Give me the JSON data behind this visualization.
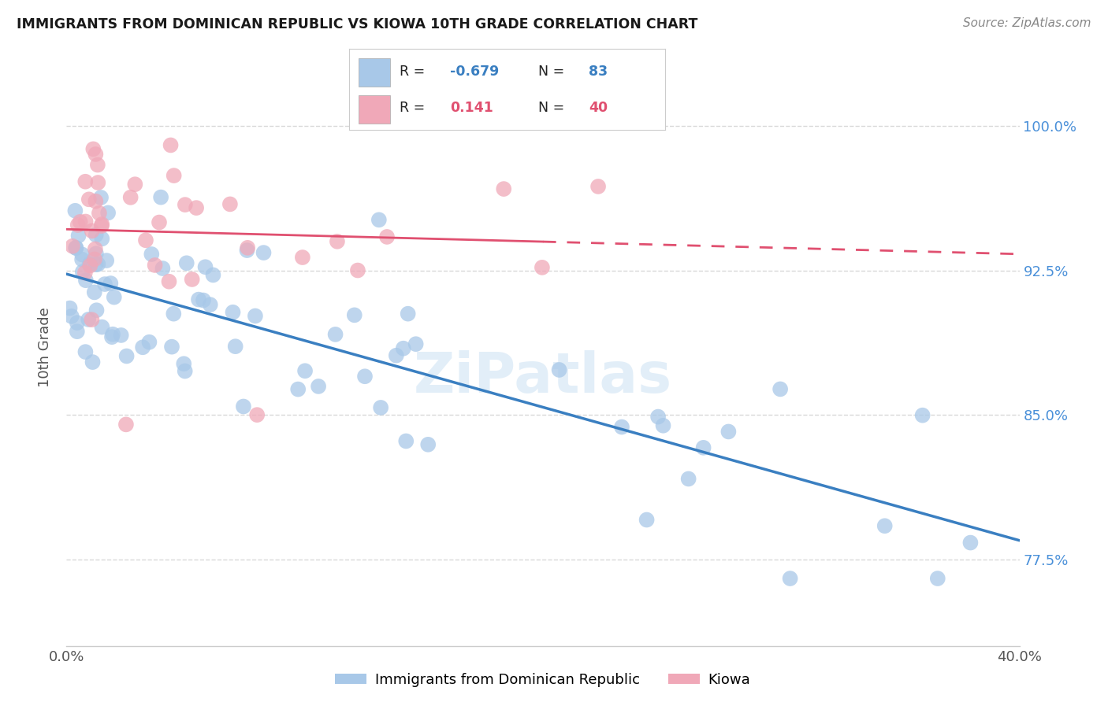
{
  "title": "IMMIGRANTS FROM DOMINICAN REPUBLIC VS KIOWA 10TH GRADE CORRELATION CHART",
  "source": "Source: ZipAtlas.com",
  "ylabel": "10th Grade",
  "ytick_vals": [
    77.5,
    85.0,
    92.5,
    100.0
  ],
  "ytick_labels": [
    "77.5%",
    "85.0%",
    "92.5%",
    "100.0%"
  ],
  "xlim": [
    0.0,
    40.0
  ],
  "ylim": [
    73.0,
    104.0
  ],
  "blue_R": "-0.679",
  "blue_N": "83",
  "pink_R": "0.141",
  "pink_N": "40",
  "blue_dot_color": "#a8c8e8",
  "pink_dot_color": "#f0a8b8",
  "blue_line_color": "#3a7fc1",
  "pink_line_color": "#e05070",
  "legend_blue_label": "Immigrants from Dominican Republic",
  "legend_pink_label": "Kiowa",
  "background_color": "#ffffff",
  "grid_color": "#d8d8d8",
  "watermark_color": "#d0e4f4",
  "right_tick_color": "#4a90d9",
  "title_color": "#1a1a1a",
  "source_color": "#888888"
}
